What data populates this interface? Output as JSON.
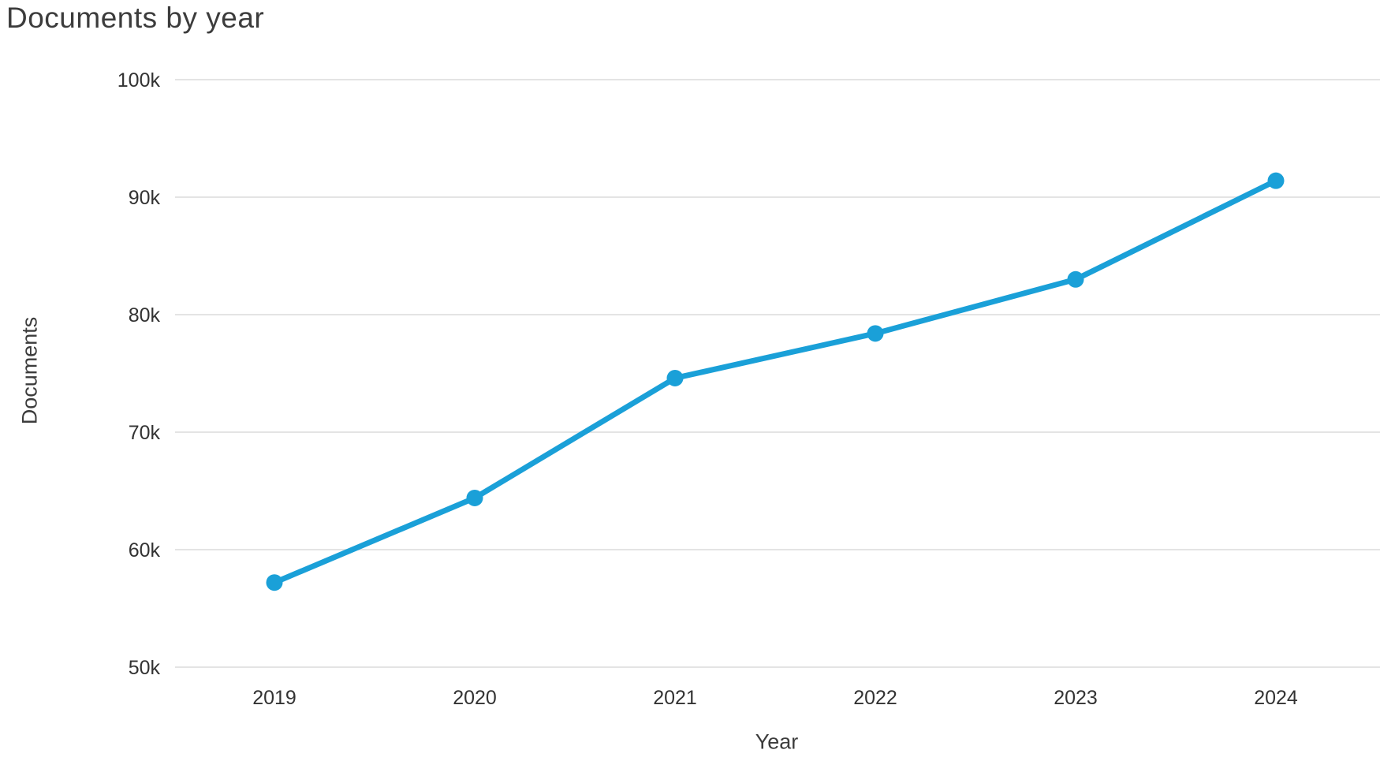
{
  "chart_data": {
    "type": "line",
    "title": "Documents by year",
    "xlabel": "Year",
    "ylabel": "Documents",
    "categories": [
      "2019",
      "2020",
      "2021",
      "2022",
      "2023",
      "2024"
    ],
    "series": [
      {
        "name": "Documents",
        "values": [
          57200,
          64400,
          74600,
          78400,
          83000,
          91400
        ]
      }
    ],
    "ylim": [
      50000,
      100000
    ],
    "yticks": [
      {
        "value": 50000,
        "label": "50k"
      },
      {
        "value": 60000,
        "label": "60k"
      },
      {
        "value": 70000,
        "label": "70k"
      },
      {
        "value": 80000,
        "label": "80k"
      },
      {
        "value": 90000,
        "label": "90k"
      },
      {
        "value": 100000,
        "label": "100k"
      }
    ],
    "grid": "horizontal",
    "legend": "none",
    "colors": {
      "line": "#1aa0d8",
      "marker": "#1aa0d8",
      "grid": "#e4e4e4",
      "text": "#3c3c3c",
      "tick_text": "#333333"
    }
  }
}
